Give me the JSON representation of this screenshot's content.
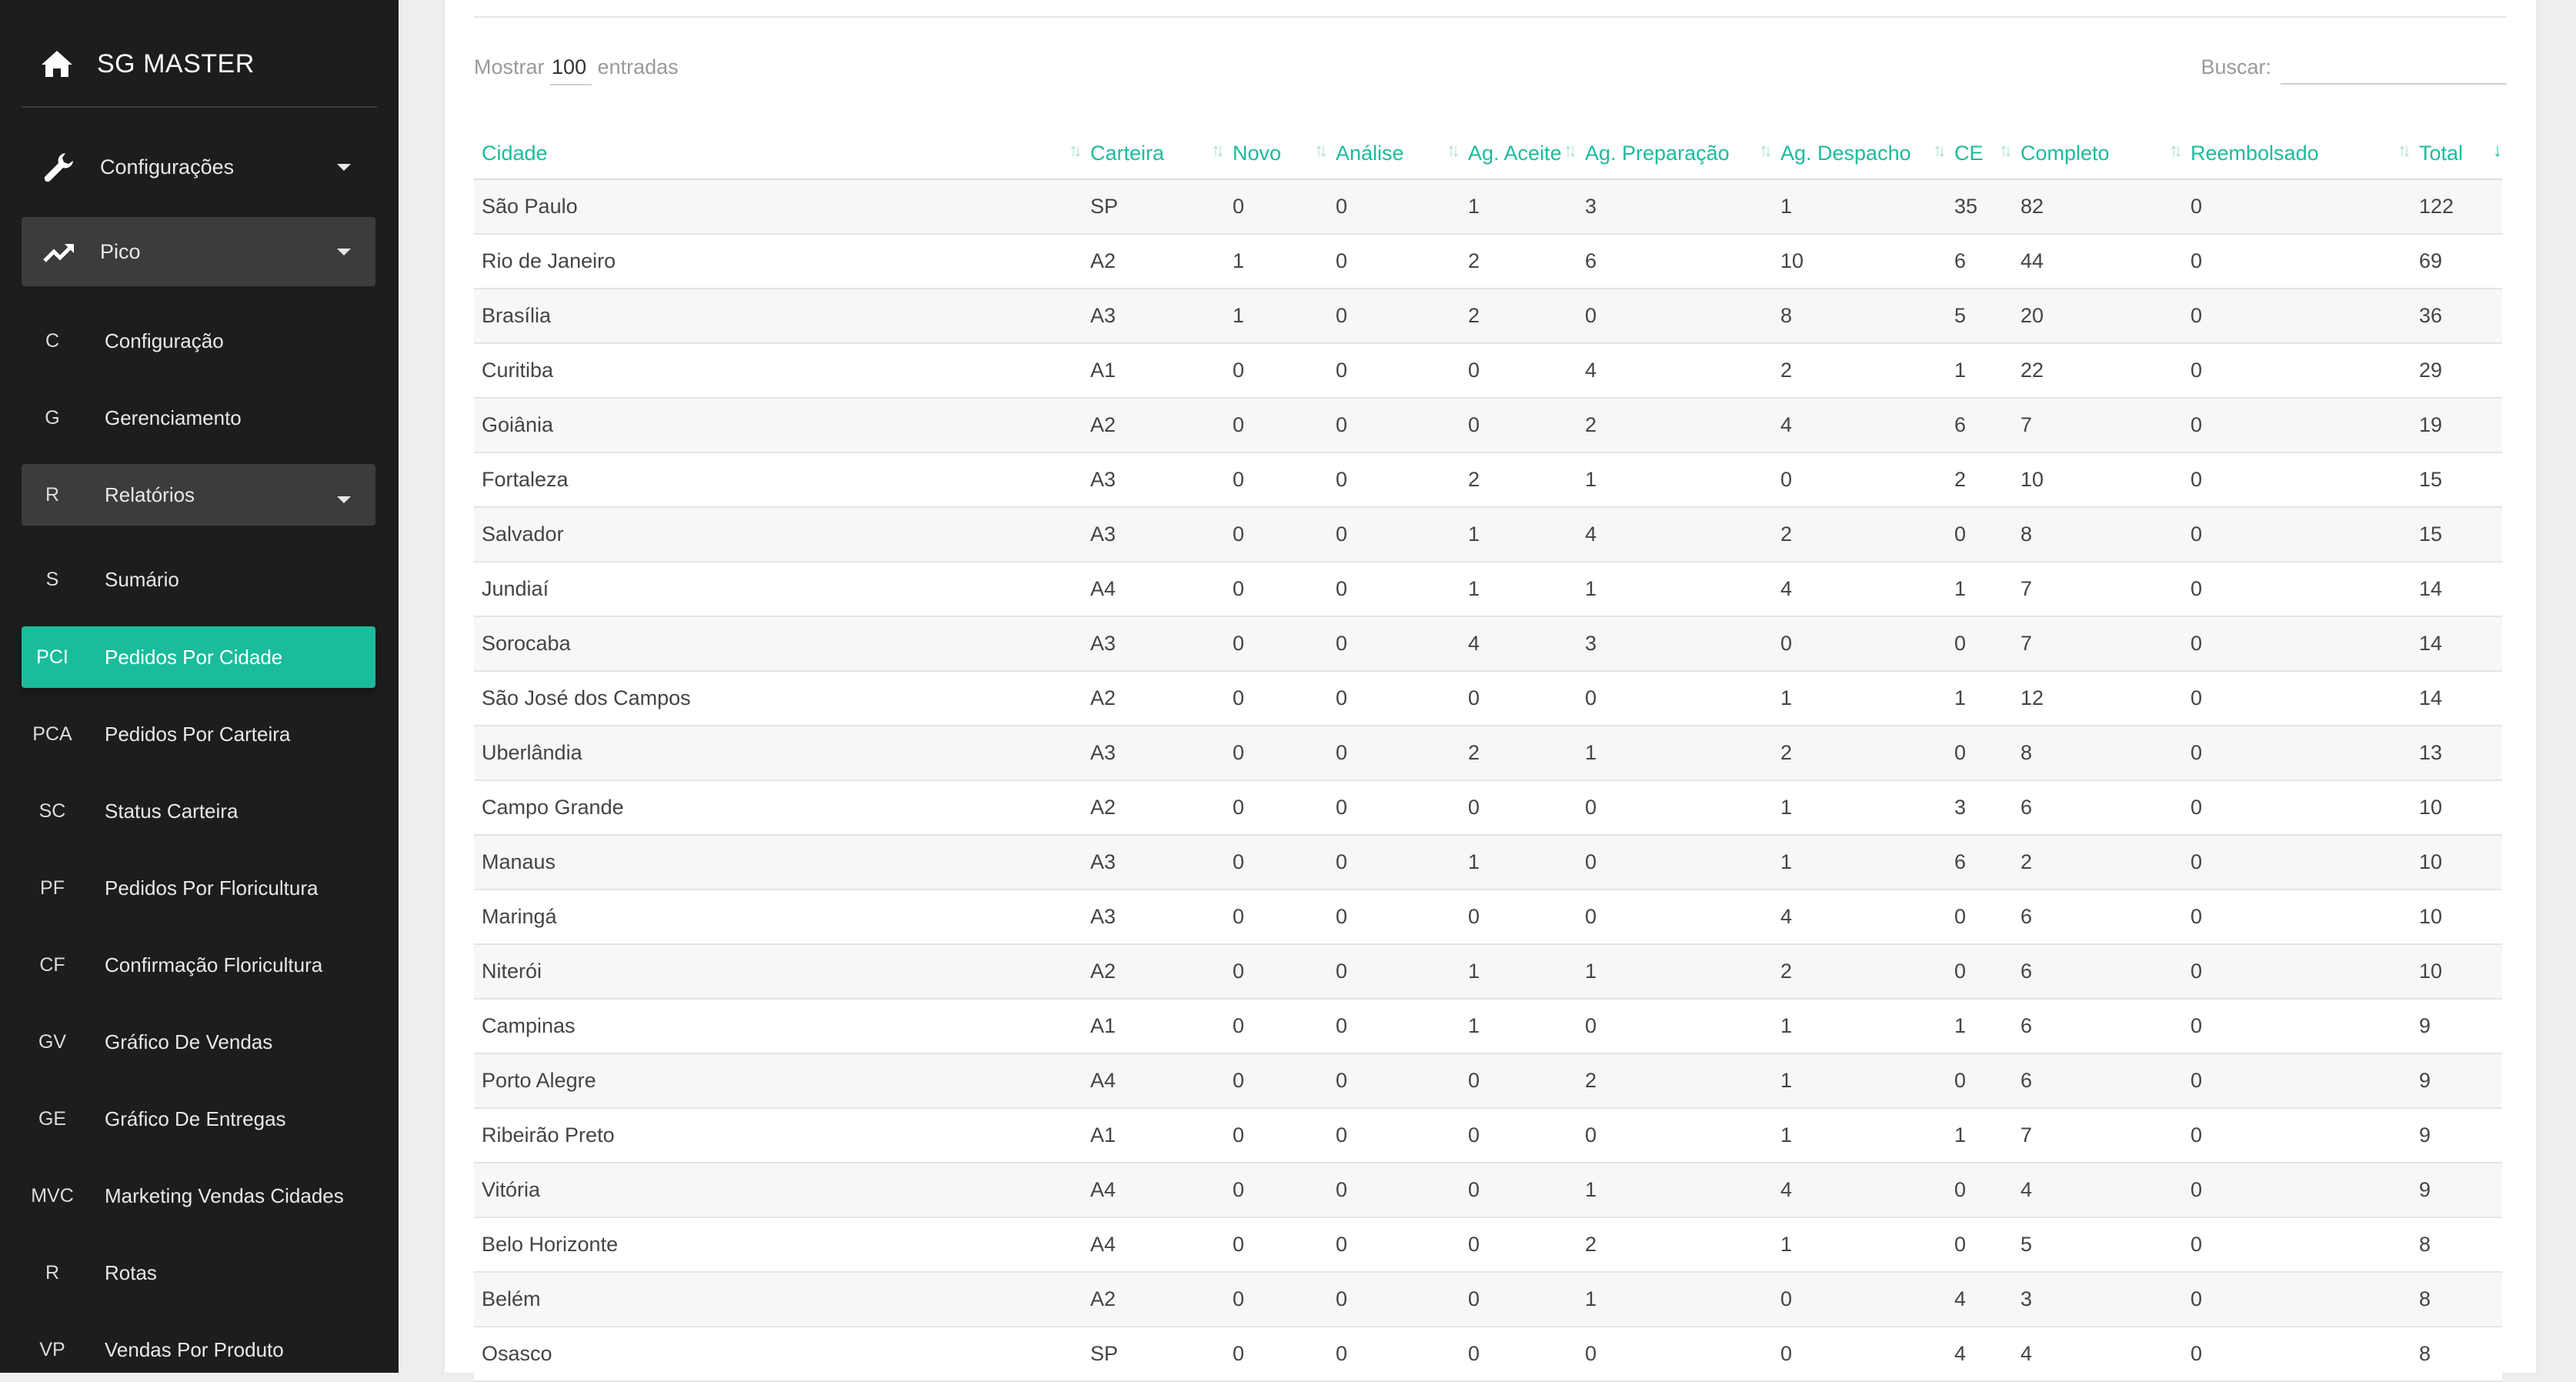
{
  "app": {
    "title": "SG MASTER"
  },
  "sidebar": {
    "menus": [
      {
        "label": "Configurações",
        "icon": "wrench-icon"
      },
      {
        "label": "Pico",
        "icon": "trending-up-icon"
      }
    ],
    "items": [
      {
        "abbr": "C",
        "label": "Configuração"
      },
      {
        "abbr": "G",
        "label": "Gerenciamento"
      },
      {
        "abbr": "R",
        "label": "Relatórios"
      },
      {
        "abbr": "S",
        "label": "Sumário"
      },
      {
        "abbr": "PCI",
        "label": "Pedidos Por Cidade"
      },
      {
        "abbr": "PCA",
        "label": "Pedidos Por Carteira"
      },
      {
        "abbr": "SC",
        "label": "Status Carteira"
      },
      {
        "abbr": "PF",
        "label": "Pedidos Por Floricultura"
      },
      {
        "abbr": "CF",
        "label": "Confirmação Floricultura"
      },
      {
        "abbr": "GV",
        "label": "Gráfico De Vendas"
      },
      {
        "abbr": "GE",
        "label": "Gráfico De Entregas"
      },
      {
        "abbr": "MVC",
        "label": "Marketing Vendas Cidades"
      },
      {
        "abbr": "R",
        "label": "Rotas"
      },
      {
        "abbr": "VP",
        "label": "Vendas Por Produto"
      }
    ],
    "active_color": "#1abc9c"
  },
  "table_controls": {
    "length_prefix": "Mostrar",
    "length_value": "100",
    "length_suffix": "entradas",
    "search_label": "Buscar:",
    "search_value": ""
  },
  "table": {
    "columns": [
      "Cidade",
      "Carteira",
      "Novo",
      "Análise",
      "Ag. Aceite",
      "Ag. Preparação",
      "Ag. Despacho",
      "CE",
      "Completo",
      "Reembolsado",
      "Total"
    ],
    "sorted_column": "Total",
    "sort_direction": "desc",
    "rows": [
      [
        "São Paulo",
        "SP",
        "0",
        "0",
        "1",
        "3",
        "1",
        "35",
        "82",
        "0",
        "122"
      ],
      [
        "Rio de Janeiro",
        "A2",
        "1",
        "0",
        "2",
        "6",
        "10",
        "6",
        "44",
        "0",
        "69"
      ],
      [
        "Brasília",
        "A3",
        "1",
        "0",
        "2",
        "0",
        "8",
        "5",
        "20",
        "0",
        "36"
      ],
      [
        "Curitiba",
        "A1",
        "0",
        "0",
        "0",
        "4",
        "2",
        "1",
        "22",
        "0",
        "29"
      ],
      [
        "Goiânia",
        "A2",
        "0",
        "0",
        "0",
        "2",
        "4",
        "6",
        "7",
        "0",
        "19"
      ],
      [
        "Fortaleza",
        "A3",
        "0",
        "0",
        "2",
        "1",
        "0",
        "2",
        "10",
        "0",
        "15"
      ],
      [
        "Salvador",
        "A3",
        "0",
        "0",
        "1",
        "4",
        "2",
        "0",
        "8",
        "0",
        "15"
      ],
      [
        "Jundiaí",
        "A4",
        "0",
        "0",
        "1",
        "1",
        "4",
        "1",
        "7",
        "0",
        "14"
      ],
      [
        "Sorocaba",
        "A3",
        "0",
        "0",
        "4",
        "3",
        "0",
        "0",
        "7",
        "0",
        "14"
      ],
      [
        "São José dos Campos",
        "A2",
        "0",
        "0",
        "0",
        "0",
        "1",
        "1",
        "12",
        "0",
        "14"
      ],
      [
        "Uberlândia",
        "A3",
        "0",
        "0",
        "2",
        "1",
        "2",
        "0",
        "8",
        "0",
        "13"
      ],
      [
        "Campo Grande",
        "A2",
        "0",
        "0",
        "0",
        "0",
        "1",
        "3",
        "6",
        "0",
        "10"
      ],
      [
        "Manaus",
        "A3",
        "0",
        "0",
        "1",
        "0",
        "1",
        "6",
        "2",
        "0",
        "10"
      ],
      [
        "Maringá",
        "A3",
        "0",
        "0",
        "0",
        "0",
        "4",
        "0",
        "6",
        "0",
        "10"
      ],
      [
        "Niterói",
        "A2",
        "0",
        "0",
        "1",
        "1",
        "2",
        "0",
        "6",
        "0",
        "10"
      ],
      [
        "Campinas",
        "A1",
        "0",
        "0",
        "1",
        "0",
        "1",
        "1",
        "6",
        "0",
        "9"
      ],
      [
        "Porto Alegre",
        "A4",
        "0",
        "0",
        "0",
        "2",
        "1",
        "0",
        "6",
        "0",
        "9"
      ],
      [
        "Ribeirão Preto",
        "A1",
        "0",
        "0",
        "0",
        "0",
        "1",
        "1",
        "7",
        "0",
        "9"
      ],
      [
        "Vitória",
        "A4",
        "0",
        "0",
        "0",
        "1",
        "4",
        "0",
        "4",
        "0",
        "9"
      ],
      [
        "Belo Horizonte",
        "A4",
        "0",
        "0",
        "0",
        "2",
        "1",
        "0",
        "5",
        "0",
        "8"
      ],
      [
        "Belém",
        "A2",
        "0",
        "0",
        "0",
        "1",
        "0",
        "4",
        "3",
        "0",
        "8"
      ],
      [
        "Osasco",
        "SP",
        "0",
        "0",
        "0",
        "0",
        "0",
        "4",
        "4",
        "0",
        "8"
      ]
    ]
  }
}
